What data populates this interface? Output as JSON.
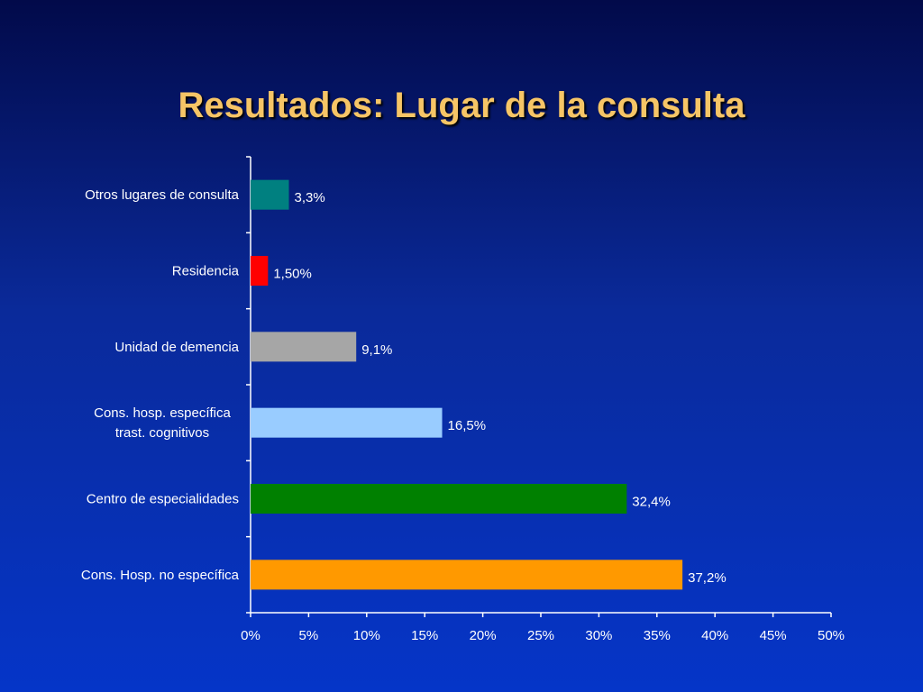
{
  "slide": {
    "title": "Resultados: Lugar de la consulta"
  },
  "chart_data": {
    "type": "bar",
    "orientation": "horizontal",
    "title": "",
    "xlabel": "",
    "ylabel": "",
    "xlim": [
      0,
      50
    ],
    "x_ticks": [
      "0%",
      "5%",
      "10%",
      "15%",
      "20%",
      "25%",
      "30%",
      "35%",
      "40%",
      "45%",
      "50%"
    ],
    "grid": false,
    "categories": [
      [
        "Otros lugares de consulta"
      ],
      [
        "Residencia"
      ],
      [
        "Unidad de demencia"
      ],
      [
        "Cons. hosp. específica",
        "trast. cognitivos"
      ],
      [
        "Centro de especialidades"
      ],
      [
        "Cons. Hosp. no específica"
      ]
    ],
    "values": [
      3.3,
      1.5,
      9.1,
      16.5,
      32.4,
      37.2
    ],
    "value_labels": [
      "3,3%",
      "1,50%",
      "9,1%",
      "16,5%",
      "32,4%",
      "37,2%"
    ],
    "colors": [
      "#008080",
      "#ff0000",
      "#a6a6a6",
      "#99ccff",
      "#008000",
      "#ff9900"
    ]
  }
}
